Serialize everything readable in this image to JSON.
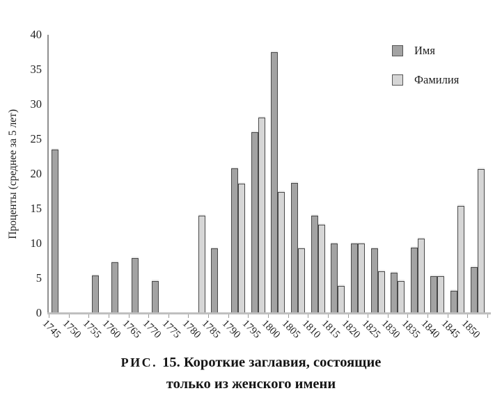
{
  "figure": {
    "caption": {
      "prefix": "РИС.",
      "line1_rest": "15. Короткие заглавия, состоящие",
      "line2": "только из женского имени"
    }
  },
  "legend": {
    "items": [
      {
        "id": "name",
        "label": "Имя",
        "color": "#a3a3a3",
        "border": "#555555"
      },
      {
        "id": "surname",
        "label": "Фамилия",
        "color": "#d6d6d6",
        "border": "#555555"
      }
    ]
  },
  "chart_data": {
    "type": "bar",
    "title": "РИС. 15. Короткие заглавия, состоящие только из женского имени",
    "xlabel": "",
    "ylabel": "Проценты (среднее за 5 лет)",
    "ylim": [
      0,
      40
    ],
    "yticks": [
      0,
      5,
      10,
      15,
      20,
      25,
      30,
      35,
      40
    ],
    "grid": false,
    "legend_position": "top-right",
    "categories": [
      "1745",
      "1750",
      "1755",
      "1760",
      "1765",
      "1770",
      "1775",
      "1780",
      "1785",
      "1790",
      "1795",
      "1800",
      "1805",
      "1810",
      "1815",
      "1820",
      "1825",
      "1830",
      "1835",
      "1840",
      "1845",
      "1850"
    ],
    "series": [
      {
        "id": "name",
        "name": "Имя",
        "color": "#a3a3a3",
        "values": [
          23.5,
          null,
          5.4,
          7.3,
          7.9,
          4.6,
          null,
          null,
          9.3,
          20.8,
          26.0,
          37.5,
          18.7,
          14.0,
          10.0,
          10.0,
          9.3,
          5.8,
          9.4,
          5.3,
          3.2,
          6.6
        ]
      },
      {
        "id": "surname",
        "name": "Фамилия",
        "color": "#d6d6d6",
        "values": [
          null,
          null,
          null,
          null,
          null,
          null,
          null,
          14.0,
          null,
          18.6,
          28.1,
          17.4,
          9.3,
          12.7,
          3.9,
          10.0,
          6.0,
          4.6,
          10.7,
          5.3,
          15.4,
          20.7
        ]
      }
    ]
  }
}
